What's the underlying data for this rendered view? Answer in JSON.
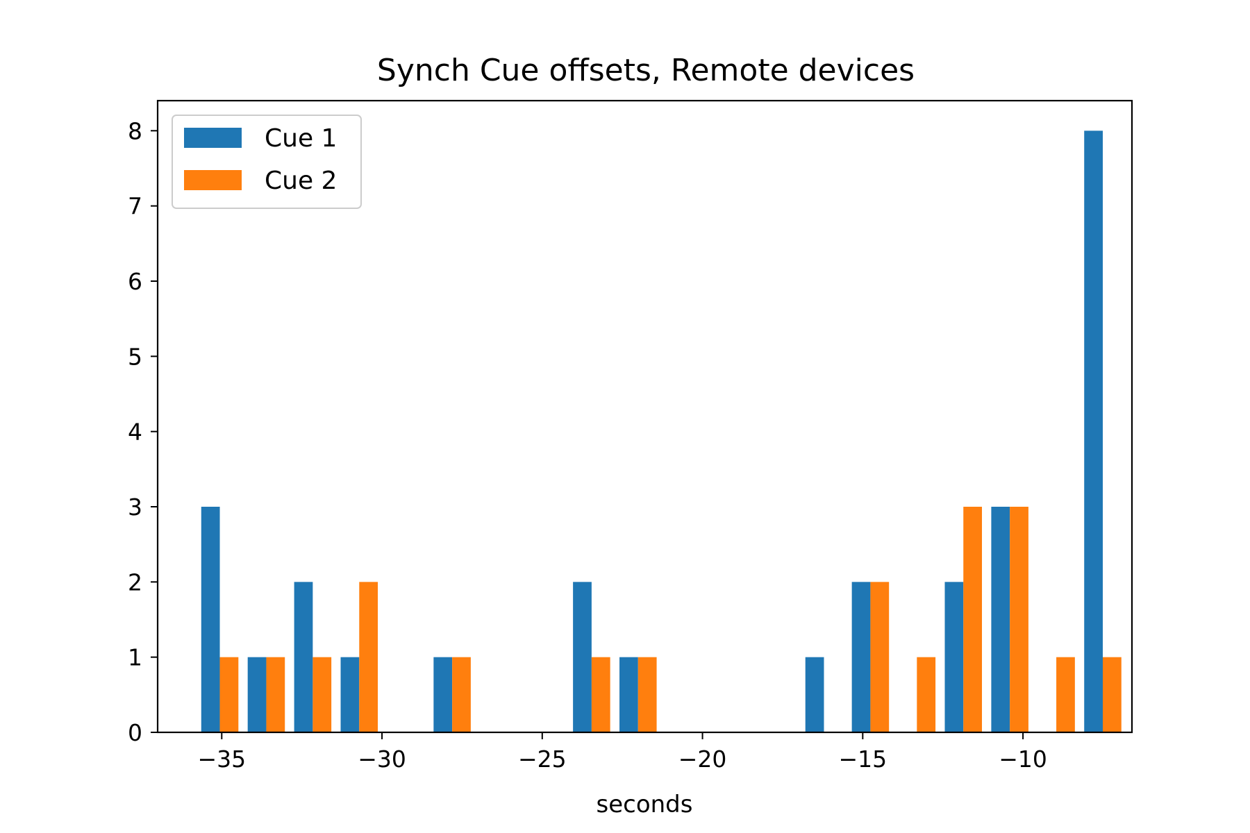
{
  "chart_data": {
    "type": "bar",
    "title": "Synch Cue offsets, Remote devices",
    "xlabel": "seconds",
    "ylabel": "",
    "bin_centers": [
      -35.06,
      -33.61,
      -32.16,
      -30.71,
      -29.26,
      -27.81,
      -26.36,
      -24.91,
      -23.46,
      -22.01,
      -20.56,
      -19.11,
      -17.66,
      -16.21,
      -14.76,
      -13.31,
      -11.86,
      -10.41,
      -8.96,
      -7.51
    ],
    "series": [
      {
        "name": "Cue 1",
        "color": "#1f77b4",
        "values": [
          3,
          1,
          2,
          1,
          0,
          1,
          0,
          0,
          2,
          1,
          0,
          0,
          0,
          1,
          2,
          0,
          2,
          3,
          0,
          8
        ]
      },
      {
        "name": "Cue 2",
        "color": "#ff7f0e",
        "values": [
          1,
          1,
          1,
          2,
          0,
          1,
          0,
          0,
          1,
          1,
          0,
          0,
          0,
          0,
          2,
          1,
          3,
          3,
          1,
          1
        ]
      }
    ],
    "xlim": [
      -37,
      -6.6
    ],
    "ylim": [
      0,
      8.4
    ],
    "xticks": [
      -35,
      -30,
      -25,
      -20,
      -15,
      -10
    ],
    "xtick_labels": [
      "−35",
      "−30",
      "−25",
      "−20",
      "−15",
      "−10"
    ],
    "yticks": [
      0,
      1,
      2,
      3,
      4,
      5,
      6,
      7,
      8
    ],
    "ytick_labels": [
      "0",
      "1",
      "2",
      "3",
      "4",
      "5",
      "6",
      "7",
      "8"
    ],
    "grid": false,
    "legend_position": "top-left"
  }
}
